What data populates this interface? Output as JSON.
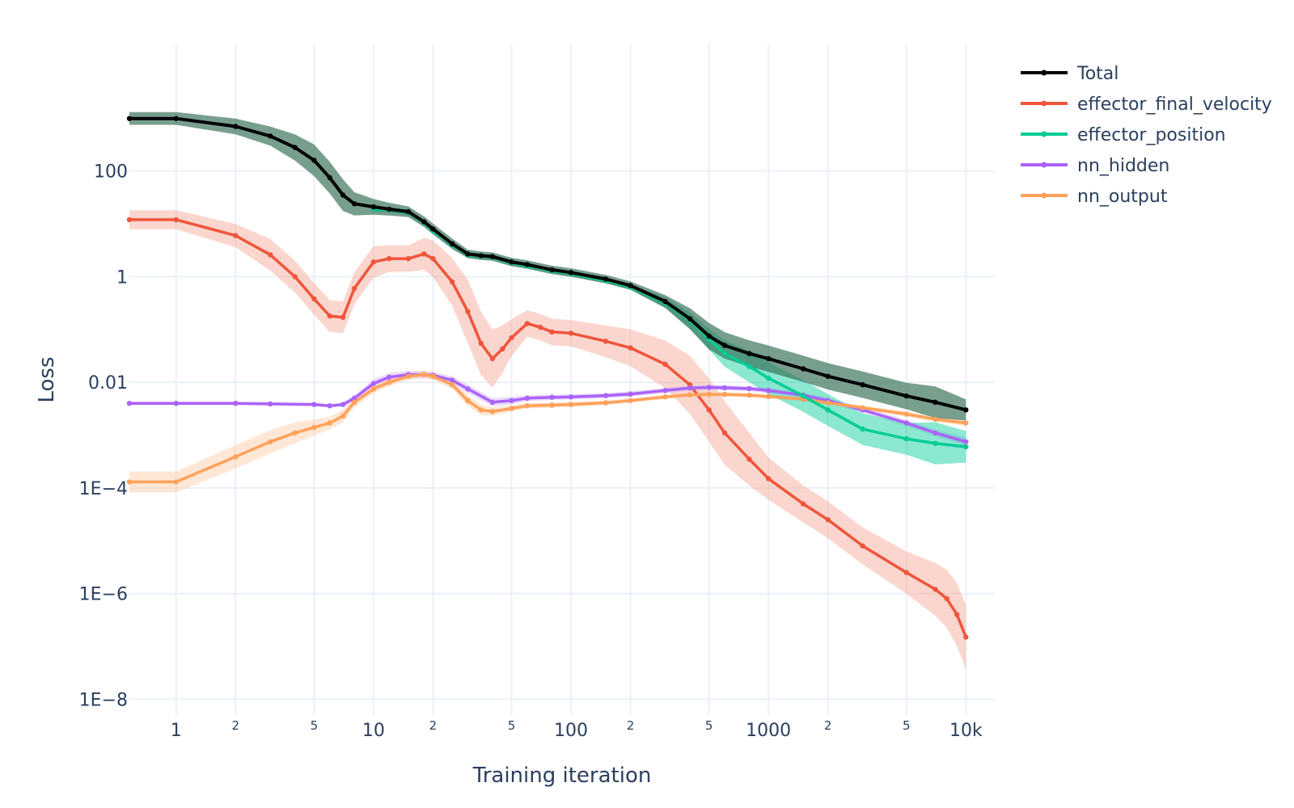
{
  "chart_data": {
    "type": "line",
    "xlabel": "Training iteration",
    "ylabel": "Loss",
    "x_scale": "log",
    "y_scale": "log",
    "xlim": [
      0.58,
      14000
    ],
    "ylim": [
      5e-09,
      25000
    ],
    "grid": true,
    "legend_position": "top-right",
    "x_ticks_major": [
      {
        "value": 1,
        "label": "1"
      },
      {
        "value": 10,
        "label": "10"
      },
      {
        "value": 100,
        "label": "100"
      },
      {
        "value": 1000,
        "label": "1000"
      },
      {
        "value": 10000,
        "label": "10k"
      }
    ],
    "x_ticks_minor": [
      {
        "value": 2,
        "label": "2"
      },
      {
        "value": 5,
        "label": "5"
      },
      {
        "value": 20,
        "label": "2"
      },
      {
        "value": 50,
        "label": "5"
      },
      {
        "value": 200,
        "label": "2"
      },
      {
        "value": 500,
        "label": "5"
      },
      {
        "value": 2000,
        "label": "2"
      },
      {
        "value": 5000,
        "label": "5"
      }
    ],
    "y_ticks": [
      {
        "value": 100,
        "label": "100"
      },
      {
        "value": 1,
        "label": "1"
      },
      {
        "value": 0.01,
        "label": "0.01"
      },
      {
        "value": 0.0001,
        "label": "1E−4"
      },
      {
        "value": 1e-06,
        "label": "1E−6"
      },
      {
        "value": 1e-08,
        "label": "1E−8"
      }
    ],
    "series": [
      {
        "name": "Total",
        "color": "#000000",
        "band_color": "#2f6b50",
        "x": [
          0.58,
          1,
          2,
          3,
          4,
          5,
          6,
          7,
          8,
          10,
          12,
          15,
          18,
          20,
          25,
          30,
          35,
          40,
          50,
          60,
          80,
          100,
          150,
          200,
          300,
          400,
          500,
          600,
          800,
          1000,
          1500,
          2000,
          3000,
          5000,
          7000,
          10000
        ],
        "y": [
          990,
          990,
          700,
          460,
          280,
          160,
          75,
          35,
          24,
          21,
          19,
          17,
          11,
          8,
          4.2,
          2.7,
          2.5,
          2.4,
          1.9,
          1.7,
          1.35,
          1.2,
          0.9,
          0.68,
          0.34,
          0.16,
          0.075,
          0.05,
          0.035,
          0.028,
          0.018,
          0.013,
          0.009,
          0.0055,
          0.0042,
          0.003
        ],
        "band": [
          0.12,
          0.12,
          0.15,
          0.18,
          0.25,
          0.3,
          0.3,
          0.3,
          0.22,
          0.15,
          0.12,
          0.1,
          0.1,
          0.1,
          0.1,
          0.08,
          0.08,
          0.08,
          0.08,
          0.08,
          0.08,
          0.08,
          0.08,
          0.08,
          0.12,
          0.2,
          0.25,
          0.25,
          0.25,
          0.25,
          0.25,
          0.25,
          0.25,
          0.25,
          0.3,
          0.2
        ]
      },
      {
        "name": "effector_final_velocity",
        "color": "#ef553b",
        "band_color": "#f4a492",
        "x": [
          0.58,
          1,
          2,
          3,
          4,
          5,
          6,
          7,
          8,
          10,
          12,
          15,
          18,
          20,
          25,
          30,
          35,
          40,
          45,
          50,
          60,
          70,
          80,
          100,
          150,
          200,
          300,
          400,
          500,
          600,
          800,
          1000,
          1500,
          2000,
          3000,
          5000,
          7000,
          8000,
          9000,
          10000
        ],
        "y": [
          12,
          12,
          6,
          2.6,
          1,
          0.38,
          0.18,
          0.17,
          0.6,
          1.9,
          2.2,
          2.2,
          2.7,
          2.2,
          0.8,
          0.22,
          0.055,
          0.028,
          0.043,
          0.07,
          0.13,
          0.11,
          0.09,
          0.085,
          0.06,
          0.045,
          0.022,
          0.009,
          0.003,
          0.0011,
          0.00035,
          0.00015,
          5e-05,
          2.5e-05,
          8e-06,
          2.5e-06,
          1.2e-06,
          8e-07,
          4e-07,
          1.5e-07
        ],
        "band": [
          0.18,
          0.18,
          0.22,
          0.3,
          0.3,
          0.3,
          0.3,
          0.3,
          0.3,
          0.3,
          0.25,
          0.25,
          0.3,
          0.35,
          0.45,
          0.6,
          0.6,
          0.55,
          0.45,
          0.35,
          0.25,
          0.25,
          0.25,
          0.25,
          0.3,
          0.35,
          0.45,
          0.55,
          0.6,
          0.6,
          0.5,
          0.4,
          0.35,
          0.35,
          0.35,
          0.4,
          0.5,
          0.55,
          0.6,
          0.6
        ]
      },
      {
        "name": "effector_position",
        "color": "#00cc96",
        "band_color": "#00cc96",
        "x": [
          10,
          12,
          15,
          18,
          20,
          25,
          30,
          35,
          40,
          50,
          60,
          80,
          100,
          150,
          200,
          300,
          400,
          500,
          600,
          800,
          1000,
          1500,
          2000,
          3000,
          5000,
          7000,
          10000
        ],
        "y": [
          19,
          18.5,
          16.5,
          10.5,
          7.5,
          4,
          2.6,
          2.45,
          2.35,
          1.85,
          1.6,
          1.3,
          1.15,
          0.85,
          0.64,
          0.32,
          0.15,
          0.065,
          0.035,
          0.02,
          0.012,
          0.0055,
          0.003,
          0.0013,
          0.00085,
          0.0007,
          0.0006
        ],
        "band": [
          0.05,
          0.05,
          0.05,
          0.05,
          0.05,
          0.05,
          0.05,
          0.05,
          0.05,
          0.05,
          0.05,
          0.05,
          0.05,
          0.05,
          0.05,
          0.1,
          0.15,
          0.2,
          0.25,
          0.3,
          0.3,
          0.3,
          0.3,
          0.3,
          0.3,
          0.4,
          0.3
        ]
      },
      {
        "name": "nn_hidden",
        "color": "#ab63fa",
        "band_color": "#d3b0fb",
        "x": [
          0.58,
          1,
          2,
          3,
          5,
          6,
          7,
          8,
          10,
          12,
          15,
          18,
          20,
          25,
          30,
          40,
          50,
          60,
          80,
          100,
          150,
          200,
          300,
          400,
          500,
          600,
          800,
          1000,
          1500,
          2000,
          3000,
          5000,
          7000,
          10000
        ],
        "y": [
          0.004,
          0.004,
          0.004,
          0.0039,
          0.0038,
          0.0036,
          0.0038,
          0.005,
          0.0095,
          0.0125,
          0.014,
          0.014,
          0.0135,
          0.011,
          0.0075,
          0.0042,
          0.0045,
          0.005,
          0.0052,
          0.0053,
          0.0056,
          0.006,
          0.007,
          0.0078,
          0.008,
          0.0079,
          0.0076,
          0.007,
          0.0057,
          0.0045,
          0.003,
          0.0017,
          0.0011,
          0.00075
        ],
        "band": [
          0.03,
          0.03,
          0.03,
          0.03,
          0.03,
          0.03,
          0.04,
          0.06,
          0.08,
          0.08,
          0.07,
          0.07,
          0.07,
          0.07,
          0.08,
          0.08,
          0.07,
          0.06,
          0.05,
          0.05,
          0.05,
          0.05,
          0.05,
          0.05,
          0.05,
          0.05,
          0.05,
          0.05,
          0.05,
          0.05,
          0.05,
          0.06,
          0.06,
          0.08
        ]
      },
      {
        "name": "nn_output",
        "color": "#ffa15a",
        "band_color": "#fdc9a2",
        "x": [
          0.58,
          1,
          2,
          3,
          4,
          5,
          6,
          7,
          8,
          10,
          12,
          15,
          18,
          20,
          25,
          30,
          35,
          40,
          50,
          60,
          80,
          100,
          150,
          200,
          300,
          400,
          500,
          600,
          800,
          1000,
          1500,
          2000,
          3000,
          5000,
          7000,
          10000
        ],
        "y": [
          0.00013,
          0.00013,
          0.00039,
          0.00075,
          0.0011,
          0.0014,
          0.0017,
          0.0023,
          0.0042,
          0.0075,
          0.01,
          0.013,
          0.014,
          0.013,
          0.009,
          0.0045,
          0.003,
          0.0028,
          0.0032,
          0.0036,
          0.0037,
          0.0038,
          0.0041,
          0.0045,
          0.0053,
          0.0058,
          0.0059,
          0.0059,
          0.0057,
          0.0054,
          0.0048,
          0.0041,
          0.0033,
          0.0025,
          0.002,
          0.0017
        ],
        "band": [
          0.2,
          0.2,
          0.22,
          0.22,
          0.2,
          0.15,
          0.12,
          0.12,
          0.1,
          0.08,
          0.07,
          0.07,
          0.07,
          0.07,
          0.08,
          0.1,
          0.1,
          0.08,
          0.06,
          0.05,
          0.05,
          0.05,
          0.04,
          0.04,
          0.04,
          0.04,
          0.04,
          0.04,
          0.04,
          0.04,
          0.04,
          0.04,
          0.04,
          0.05,
          0.05,
          0.06
        ]
      }
    ]
  }
}
